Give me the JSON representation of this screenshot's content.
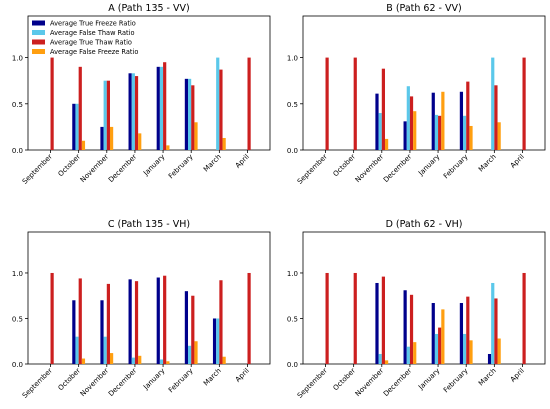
{
  "colors": {
    "true_freeze": "#00008b",
    "false_thaw": "#5bc8ea",
    "true_thaw": "#cc1f1f",
    "false_freeze": "#ff9f10"
  },
  "chart_data": [
    {
      "type": "bar",
      "title": "A (Path 135 - VV)",
      "categories": [
        "September",
        "October",
        "November",
        "December",
        "January",
        "February",
        "March",
        "April"
      ],
      "yticks": [
        "0.0",
        "0.5",
        "1.0"
      ],
      "ylim": [
        0,
        1.45
      ],
      "legend_position": "top-left",
      "series": [
        {
          "name": "Average True Freeze Ratio",
          "values": [
            0,
            0.5,
            0.25,
            0.83,
            0.9,
            0.77,
            0,
            0
          ]
        },
        {
          "name": "Average False Thaw Ratio",
          "values": [
            0,
            0.5,
            0.75,
            0.83,
            0.9,
            0.77,
            1.0,
            0
          ]
        },
        {
          "name": "Average True Thaw Ratio",
          "values": [
            1.0,
            0.9,
            0.75,
            0.8,
            0.95,
            0.7,
            0.87,
            1.0
          ]
        },
        {
          "name": "Average False Freeze Ratio",
          "values": [
            0,
            0.1,
            0.25,
            0.18,
            0.05,
            0.3,
            0.13,
            0
          ]
        }
      ]
    },
    {
      "type": "bar",
      "title": "B (Path 62 - VV)",
      "categories": [
        "September",
        "October",
        "November",
        "December",
        "January",
        "February",
        "March",
        "April"
      ],
      "yticks": [
        "0.0",
        "0.5",
        "1.0"
      ],
      "ylim": [
        0,
        1.45
      ],
      "series": [
        {
          "name": "Average True Freeze Ratio",
          "values": [
            0,
            0,
            0.61,
            0.31,
            0.62,
            0.63,
            0,
            0
          ]
        },
        {
          "name": "Average False Thaw Ratio",
          "values": [
            0,
            0,
            0.4,
            0.69,
            0.38,
            0.37,
            1.0,
            0
          ]
        },
        {
          "name": "Average True Thaw Ratio",
          "values": [
            1.0,
            1.0,
            0.88,
            0.58,
            0.37,
            0.74,
            0.7,
            1.0
          ]
        },
        {
          "name": "Average False Freeze Ratio",
          "values": [
            0,
            0,
            0.12,
            0.42,
            0.63,
            0.26,
            0.3,
            0
          ]
        }
      ]
    },
    {
      "type": "bar",
      "title": "C (Path 135 - VH)",
      "categories": [
        "September",
        "October",
        "November",
        "December",
        "January",
        "February",
        "March",
        "April"
      ],
      "yticks": [
        "0.0",
        "0.5",
        "1.0"
      ],
      "ylim": [
        0,
        1.45
      ],
      "series": [
        {
          "name": "Average True Freeze Ratio",
          "values": [
            0,
            0.7,
            0.7,
            0.93,
            0.95,
            0.8,
            0.5,
            0
          ]
        },
        {
          "name": "Average False Thaw Ratio",
          "values": [
            0,
            0.3,
            0.3,
            0.07,
            0.05,
            0.2,
            0.5,
            0
          ]
        },
        {
          "name": "Average True Thaw Ratio",
          "values": [
            1.0,
            0.94,
            0.88,
            0.91,
            0.97,
            0.75,
            0.92,
            1.0
          ]
        },
        {
          "name": "Average False Freeze Ratio",
          "values": [
            0,
            0.06,
            0.12,
            0.09,
            0.03,
            0.25,
            0.08,
            0
          ]
        }
      ]
    },
    {
      "type": "bar",
      "title": "D (Path 62 - VH)",
      "categories": [
        "September",
        "October",
        "November",
        "December",
        "January",
        "February",
        "March",
        "April"
      ],
      "yticks": [
        "0.0",
        "0.5",
        "1.0"
      ],
      "ylim": [
        0,
        1.45
      ],
      "series": [
        {
          "name": "Average True Freeze Ratio",
          "values": [
            0,
            0,
            0.89,
            0.81,
            0.67,
            0.67,
            0.11,
            0
          ]
        },
        {
          "name": "Average False Thaw Ratio",
          "values": [
            0,
            0,
            0.11,
            0.19,
            0.33,
            0.33,
            0.89,
            0
          ]
        },
        {
          "name": "Average True Thaw Ratio",
          "values": [
            1.0,
            1.0,
            0.96,
            0.76,
            0.4,
            0.74,
            0.72,
            1.0
          ]
        },
        {
          "name": "Average False Freeze Ratio",
          "values": [
            0,
            0,
            0.04,
            0.24,
            0.6,
            0.26,
            0.28,
            0
          ]
        }
      ]
    }
  ]
}
